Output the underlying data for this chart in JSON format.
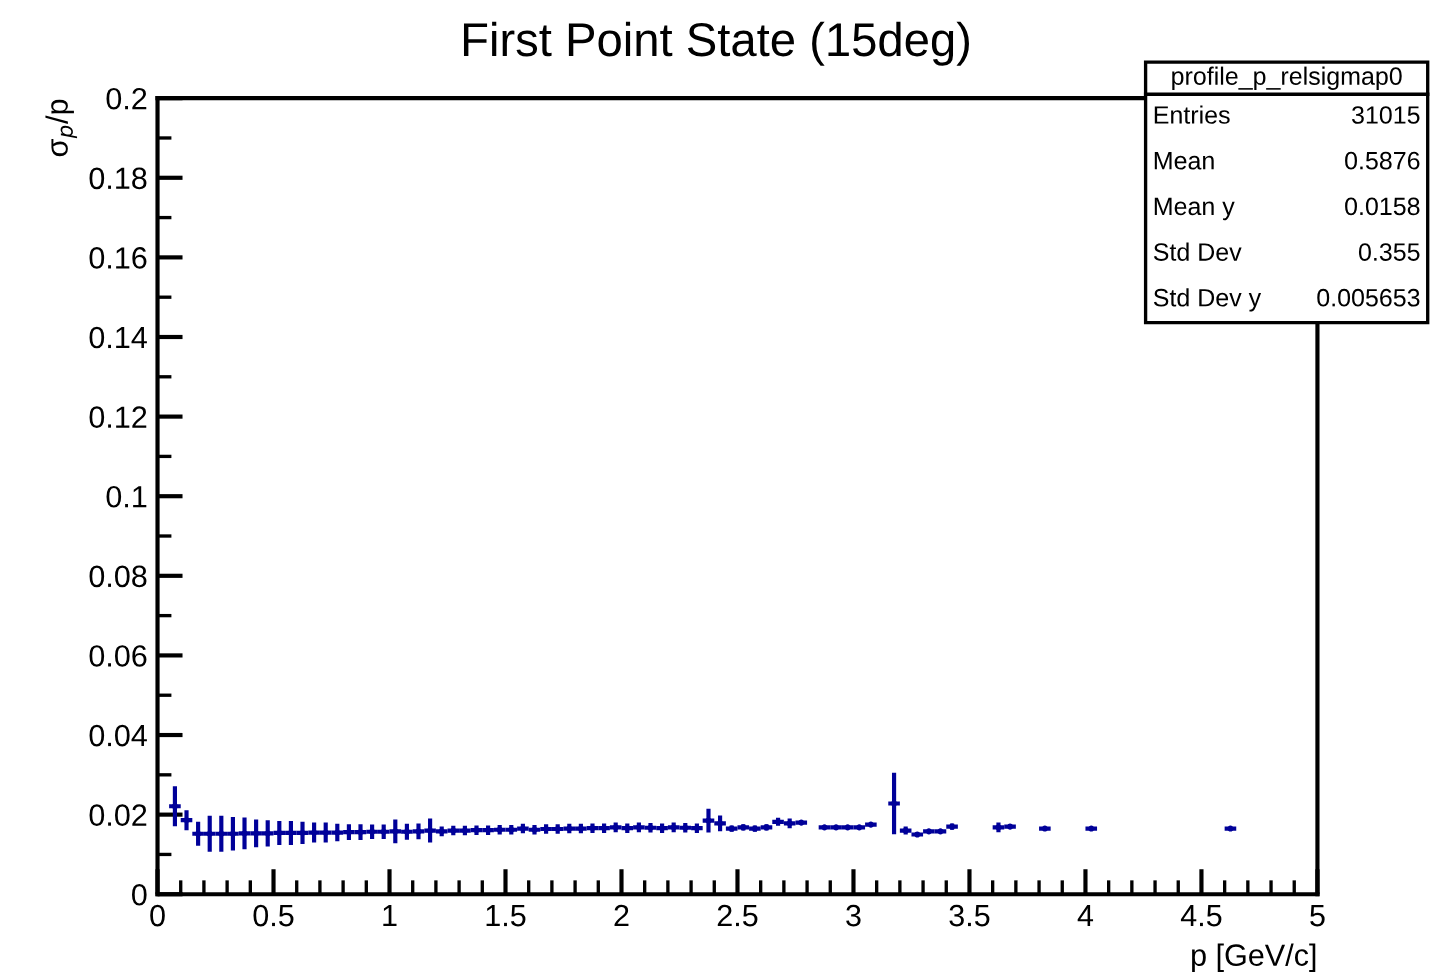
{
  "chart_data": {
    "type": "scatter",
    "title": "First Point State (15deg)",
    "xlabel": "p [GeV/c]",
    "ylabel": "σ$_{p}$/p",
    "xlim": [
      0,
      5
    ],
    "xticks": [
      0,
      0.5,
      1,
      1.5,
      2,
      2.5,
      3,
      3.5,
      4,
      4.5,
      5
    ],
    "ylim": [
      0,
      0.2
    ],
    "yticks": [
      0,
      0.02,
      0.04,
      0.06,
      0.08,
      0.1,
      0.12,
      0.14,
      0.16,
      0.18,
      0.2
    ],
    "grid": false,
    "marker": "circle",
    "annotations": [
      "profile_p_relsigmap0",
      "Entries",
      "31015",
      "Mean",
      "0.5876",
      "Mean y",
      "0.0158",
      "Std Dev",
      "0.355",
      "Std Dev y",
      "0.005653"
    ],
    "series": [
      {
        "color": "#000099",
        "x": [
          0.075,
          0.125,
          0.175,
          0.225,
          0.275,
          0.325,
          0.375,
          0.425,
          0.475,
          0.525,
          0.575,
          0.625,
          0.675,
          0.725,
          0.775,
          0.825,
          0.875,
          0.925,
          0.975,
          1.025,
          1.075,
          1.125,
          1.175,
          1.225,
          1.275,
          1.325,
          1.375,
          1.425,
          1.475,
          1.525,
          1.575,
          1.625,
          1.675,
          1.725,
          1.775,
          1.825,
          1.875,
          1.925,
          1.975,
          2.025,
          2.075,
          2.125,
          2.175,
          2.225,
          2.275,
          2.325,
          2.375,
          2.425,
          2.475,
          2.525,
          2.575,
          2.625,
          2.675,
          2.725,
          2.775,
          2.875,
          2.925,
          2.975,
          3.025,
          3.075,
          3.175,
          3.225,
          3.275,
          3.325,
          3.375,
          3.425,
          3.625,
          3.675,
          3.825,
          4.025,
          4.625
        ],
        "values": [
          0.0221,
          0.0186,
          0.0152,
          0.0152,
          0.0152,
          0.0152,
          0.0153,
          0.0153,
          0.0153,
          0.0154,
          0.0154,
          0.0154,
          0.0155,
          0.0155,
          0.0155,
          0.0156,
          0.0156,
          0.0157,
          0.0157,
          0.0158,
          0.0157,
          0.0158,
          0.016,
          0.0158,
          0.016,
          0.016,
          0.0161,
          0.0161,
          0.0162,
          0.0162,
          0.0165,
          0.0162,
          0.0164,
          0.0164,
          0.0165,
          0.0165,
          0.0166,
          0.0166,
          0.0168,
          0.0166,
          0.0168,
          0.0167,
          0.0166,
          0.0168,
          0.0167,
          0.0166,
          0.0185,
          0.0178,
          0.0165,
          0.0168,
          0.0165,
          0.0168,
          0.0182,
          0.0178,
          0.018,
          0.0168,
          0.0168,
          0.0168,
          0.0168,
          0.0175,
          0.0228,
          0.016,
          0.015,
          0.0158,
          0.0158,
          0.017,
          0.0168,
          0.017,
          0.0165,
          0.0165,
          0.0165
        ],
        "errors": [
          0.005,
          0.0025,
          0.003,
          0.0045,
          0.0045,
          0.0042,
          0.004,
          0.0035,
          0.0033,
          0.003,
          0.003,
          0.0028,
          0.0025,
          0.0025,
          0.0022,
          0.002,
          0.002,
          0.0018,
          0.0018,
          0.003,
          0.002,
          0.002,
          0.003,
          0.0012,
          0.0012,
          0.0012,
          0.0012,
          0.0012,
          0.0012,
          0.0012,
          0.0012,
          0.0012,
          0.0012,
          0.0012,
          0.0012,
          0.0012,
          0.0012,
          0.0012,
          0.0012,
          0.0012,
          0.0012,
          0.0012,
          0.0012,
          0.0012,
          0.0012,
          0.0012,
          0.003,
          0.002,
          0.0008,
          0.0008,
          0.0008,
          0.0008,
          0.001,
          0.0012,
          null,
          null,
          null,
          null,
          null,
          null,
          0.0077,
          0.001,
          null,
          null,
          null,
          0.0008,
          0.0012,
          0.0006,
          null,
          null,
          null
        ],
        "xerrors": [
          0.025,
          0.025,
          0.025,
          0.025,
          0.025,
          0.025,
          0.025,
          0.025,
          0.025,
          0.025,
          0.025,
          0.025,
          0.025,
          0.025,
          0.025,
          0.025,
          0.025,
          0.025,
          0.025,
          0.025,
          0.025,
          0.025,
          0.025,
          0.025,
          0.025,
          0.025,
          0.025,
          0.025,
          0.025,
          0.025,
          0.025,
          0.025,
          0.025,
          0.025,
          0.025,
          0.025,
          0.025,
          0.025,
          0.025,
          0.025,
          0.025,
          0.025,
          0.025,
          0.025,
          0.025,
          0.025,
          0.025,
          0.025,
          0.025,
          0.025,
          0.025,
          0.025,
          0.025,
          0.025,
          0.025,
          0.025,
          0.025,
          0.025,
          0.025,
          0.025,
          0.025,
          0.025,
          0.025,
          0.025,
          0.025,
          0.025,
          0.025,
          0.025,
          0.025,
          0.025,
          0.025
        ]
      }
    ]
  }
}
